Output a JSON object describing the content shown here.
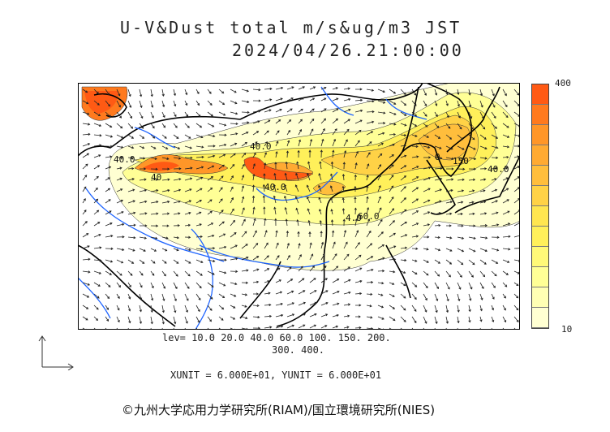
{
  "title": {
    "line1": "U-V&Dust total m/s&ug/m3 JST",
    "line2": "2024/04/26.21:00:00"
  },
  "colorbar": {
    "max_label": "400",
    "min_label": "10",
    "colors": [
      "#ff5a14",
      "#ff7a1e",
      "#ff9628",
      "#ffaa32",
      "#ffbe3c",
      "#ffd246",
      "#ffe650",
      "#fff05a",
      "#fff978",
      "#ffff96",
      "#ffffb4",
      "#ffffd2"
    ]
  },
  "legend": {
    "levels_line1": "lev= 10.0 20.0 40.0 60.0 100. 150. 200.",
    "levels_line2": "300. 400.",
    "units": "XUNIT = 6.000E+01, YUNIT = 6.000E+01"
  },
  "contour_labels": [
    "40.0",
    "40.0",
    "40",
    "40.0",
    "60.0",
    "150",
    "40.0",
    "4.0",
    "0"
  ],
  "copyright": "©九州大学応用力学研究所(RIAM)/国立環境研究所(NIES)"
}
